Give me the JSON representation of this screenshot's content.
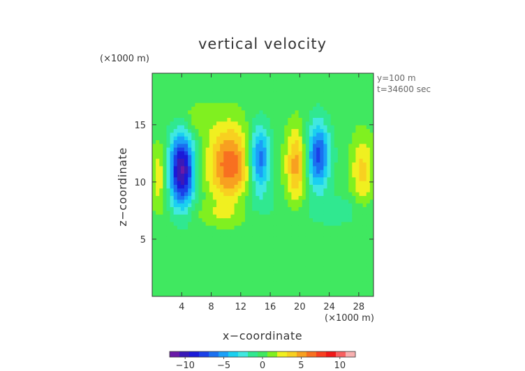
{
  "chart_data": {
    "type": "heatmap",
    "title": "vertical velocity",
    "xlabel": "x−coordinate",
    "ylabel": "z−coordinate",
    "x_unit": "(×1000 m)",
    "z_unit": "(×1000 m)",
    "annotations": [
      "y=100 m",
      "t=34600 sec"
    ],
    "x_ticks": [
      4,
      8,
      12,
      16,
      20,
      24,
      28
    ],
    "x_tick_labels": [
      "4",
      "8",
      "12",
      "16",
      "20",
      "24",
      "28"
    ],
    "z_ticks": [
      5,
      10,
      15
    ],
    "z_tick_labels": [
      "5",
      "10",
      "15"
    ],
    "xlim": [
      0,
      30
    ],
    "zlim": [
      0,
      19.5
    ],
    "grid": false,
    "colorbar": {
      "range": [
        -12,
        12
      ],
      "ticks": [
        -10,
        -5,
        0,
        5,
        10
      ],
      "tick_labels": [
        "−10",
        "−5",
        "0",
        "5",
        "10"
      ],
      "colors": [
        "#6a1aa8",
        "#3a1ab8",
        "#1a1ad8",
        "#1a40e8",
        "#1a70f0",
        "#1aa0f8",
        "#1ad0f0",
        "#40e8e0",
        "#30e890",
        "#40e860",
        "#80f020",
        "#f0f020",
        "#f8d020",
        "#f8a020",
        "#f87020",
        "#f84020",
        "#f01818",
        "#f86060",
        "#f8b0b0"
      ],
      "placement": "bottom"
    },
    "field_features": [
      {
        "x": 4.0,
        "z": 11.0,
        "w": -11,
        "sx": 1.2,
        "sz": 2.2
      },
      {
        "x": 14.5,
        "z": 12.0,
        "w": -7,
        "sx": 1.0,
        "sz": 2.0
      },
      {
        "x": 22.5,
        "z": 12.3,
        "w": -7.5,
        "sx": 1.1,
        "sz": 2.0
      },
      {
        "x": 1.0,
        "z": 10.5,
        "w": 3,
        "sx": 0.8,
        "sz": 2.0
      },
      {
        "x": 10.5,
        "z": 11.5,
        "w": 6.5,
        "sx": 2.1,
        "sz": 2.5
      },
      {
        "x": 19.5,
        "z": 11.5,
        "w": 5,
        "sx": 1.0,
        "sz": 2.3
      },
      {
        "x": 28.5,
        "z": 11.0,
        "w": 3.5,
        "sx": 1.1,
        "sz": 2.2
      },
      {
        "x": 6.0,
        "z": 15.5,
        "w": 1.6,
        "sx": 1.5,
        "sz": 1.0
      },
      {
        "x": 12.5,
        "z": 7.8,
        "w": -1.6,
        "sx": 3.0,
        "sz": 0.9
      },
      {
        "x": 25.0,
        "z": 7.5,
        "w": -1.5,
        "sx": 3.0,
        "sz": 0.9
      },
      {
        "x": 10.0,
        "z": 7.3,
        "w": 1.8,
        "sx": 3.0,
        "sz": 0.7
      }
    ]
  }
}
